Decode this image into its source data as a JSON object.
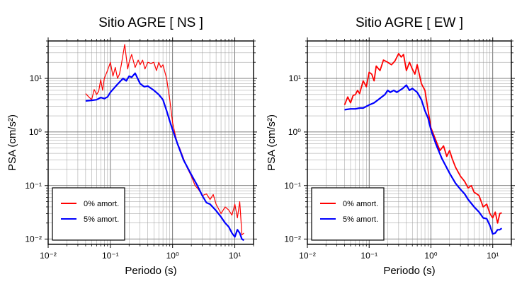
{
  "chart_data": [
    {
      "type": "line",
      "title": "Sitio AGRE [ NS ]",
      "xlabel": "Periodo (s)",
      "ylabel": "PSA (cm/s²)",
      "xscale": "log",
      "yscale": "log",
      "xlim": [
        0.01,
        20
      ],
      "ylim": [
        0.008,
        50
      ],
      "xticks": [
        "10⁻²",
        "10⁻¹",
        "10⁰",
        "10¹"
      ],
      "yticks": [
        "10⁻²",
        "10⁻¹",
        "10⁰",
        "10¹"
      ],
      "grid": true,
      "legend_position": "bottom-left",
      "series": [
        {
          "name": "0% amort.",
          "color": "#ff0000",
          "x": [
            0.04,
            0.045,
            0.05,
            0.055,
            0.06,
            0.065,
            0.07,
            0.075,
            0.08,
            0.09,
            0.1,
            0.11,
            0.12,
            0.13,
            0.14,
            0.15,
            0.17,
            0.19,
            0.2,
            0.22,
            0.25,
            0.28,
            0.3,
            0.33,
            0.36,
            0.4,
            0.45,
            0.5,
            0.55,
            0.6,
            0.65,
            0.7,
            0.8,
            0.9,
            1.0,
            1.1,
            1.2,
            1.3,
            1.5,
            1.7,
            2.0,
            2.3,
            2.6,
            3.0,
            3.5,
            4.0,
            4.5,
            5.0,
            6.0,
            7.0,
            8.0,
            9.0,
            10.0,
            11.0,
            12.0,
            13.0,
            14.0
          ],
          "y": [
            5.2,
            4.5,
            4.0,
            6.2,
            5.0,
            5.8,
            9.5,
            6.0,
            10.0,
            14.0,
            20.0,
            11.0,
            16.0,
            10.0,
            12.0,
            18.0,
            43.0,
            15.0,
            20.0,
            28.0,
            16.0,
            22.0,
            18.0,
            22.0,
            15.0,
            20.0,
            19.0,
            20.0,
            14.0,
            20.0,
            16.0,
            18.0,
            10.0,
            4.0,
            1.5,
            0.9,
            0.6,
            0.5,
            0.32,
            0.22,
            0.15,
            0.1,
            0.085,
            0.065,
            0.07,
            0.055,
            0.068,
            0.045,
            0.03,
            0.04,
            0.035,
            0.028,
            0.045,
            0.025,
            0.05,
            0.012,
            0.013
          ]
        },
        {
          "name": "5% amort.",
          "color": "#0000ff",
          "x": [
            0.04,
            0.05,
            0.06,
            0.07,
            0.08,
            0.09,
            0.1,
            0.12,
            0.14,
            0.16,
            0.18,
            0.2,
            0.22,
            0.25,
            0.28,
            0.3,
            0.35,
            0.4,
            0.5,
            0.6,
            0.7,
            0.8,
            0.9,
            1.0,
            1.2,
            1.5,
            2.0,
            2.5,
            3.0,
            3.5,
            4.0,
            5.0,
            6.0,
            7.0,
            8.0,
            9.0,
            10.0,
            11.0,
            12.0,
            13.0,
            14.0
          ],
          "y": [
            3.8,
            3.9,
            4.0,
            4.4,
            4.2,
            4.5,
            5.5,
            7.0,
            8.5,
            10.0,
            9.0,
            11.0,
            10.5,
            12.5,
            9.5,
            8.0,
            7.0,
            7.2,
            6.0,
            5.0,
            4.0,
            2.5,
            1.6,
            1.1,
            0.6,
            0.3,
            0.16,
            0.1,
            0.065,
            0.048,
            0.045,
            0.034,
            0.026,
            0.02,
            0.017,
            0.013,
            0.011,
            0.015,
            0.013,
            0.01,
            0.0095
          ]
        }
      ]
    },
    {
      "type": "line",
      "title": "Sitio AGRE [ EW ]",
      "xlabel": "Periodo (s)",
      "ylabel": "PSA (cm/s²)",
      "xscale": "log",
      "yscale": "log",
      "xlim": [
        0.01,
        20
      ],
      "ylim": [
        0.008,
        50
      ],
      "xticks": [
        "10⁻²",
        "10⁻¹",
        "10⁰",
        "10¹"
      ],
      "yticks": [
        "10⁻²",
        "10⁻¹",
        "10⁰",
        "10¹"
      ],
      "grid": true,
      "legend_position": "bottom-left",
      "series": [
        {
          "name": "0% amort.",
          "color": "#ff0000",
          "x": [
            0.04,
            0.045,
            0.05,
            0.055,
            0.06,
            0.065,
            0.07,
            0.08,
            0.09,
            0.1,
            0.11,
            0.12,
            0.13,
            0.15,
            0.17,
            0.2,
            0.23,
            0.26,
            0.3,
            0.33,
            0.36,
            0.4,
            0.45,
            0.5,
            0.55,
            0.6,
            0.7,
            0.8,
            0.9,
            1.0,
            1.2,
            1.4,
            1.6,
            1.8,
            2.0,
            2.2,
            2.5,
            3.0,
            3.5,
            4.0,
            4.5,
            5.0,
            5.5,
            6.0,
            7.0,
            8.0,
            9.0,
            10.0,
            11.0,
            12.0,
            13.0,
            14.0
          ],
          "y": [
            3.2,
            4.5,
            3.5,
            4.8,
            5.0,
            6.0,
            5.2,
            9.0,
            7.0,
            13.0,
            12.0,
            9.0,
            17.0,
            14.0,
            22.0,
            20.0,
            18.0,
            21.0,
            29.0,
            25.0,
            28.0,
            14.0,
            20.0,
            15.0,
            12.0,
            18.0,
            8.0,
            6.0,
            2.5,
            1.2,
            0.7,
            0.45,
            0.55,
            0.35,
            0.45,
            0.32,
            0.22,
            0.15,
            0.12,
            0.09,
            0.1,
            0.075,
            0.07,
            0.065,
            0.04,
            0.045,
            0.03,
            0.025,
            0.032,
            0.02,
            0.03,
            0.031
          ]
        },
        {
          "name": "5% amort.",
          "color": "#0000ff",
          "x": [
            0.04,
            0.05,
            0.06,
            0.07,
            0.08,
            0.1,
            0.12,
            0.14,
            0.16,
            0.18,
            0.2,
            0.22,
            0.25,
            0.28,
            0.3,
            0.35,
            0.4,
            0.45,
            0.5,
            0.6,
            0.7,
            0.8,
            0.9,
            1.0,
            1.2,
            1.5,
            2.0,
            2.5,
            3.0,
            3.5,
            4.0,
            5.0,
            6.0,
            7.0,
            8.0,
            9.0,
            10.0,
            11.0,
            12.0,
            13.0,
            14.0
          ],
          "y": [
            2.6,
            2.7,
            2.7,
            2.8,
            2.8,
            3.2,
            3.5,
            4.0,
            4.5,
            5.0,
            6.0,
            5.5,
            6.0,
            5.5,
            5.8,
            6.5,
            7.5,
            6.0,
            6.5,
            5.5,
            4.0,
            2.5,
            1.8,
            1.1,
            0.6,
            0.32,
            0.17,
            0.11,
            0.085,
            0.07,
            0.055,
            0.04,
            0.032,
            0.025,
            0.024,
            0.018,
            0.0125,
            0.013,
            0.015,
            0.015,
            0.016
          ]
        }
      ]
    }
  ]
}
